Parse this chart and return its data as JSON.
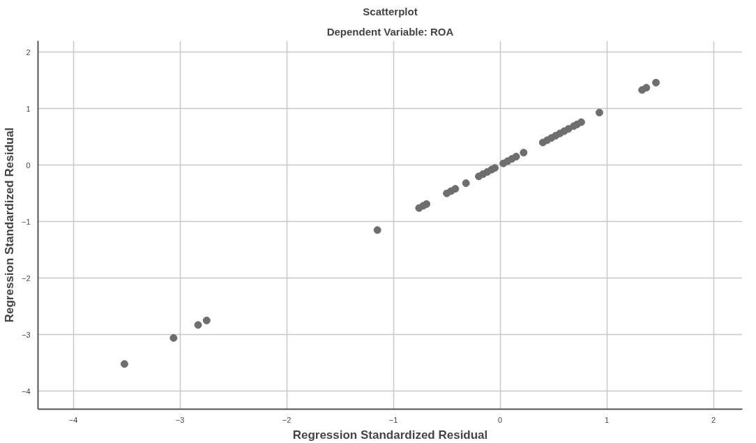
{
  "chart_data": {
    "type": "scatter",
    "title": "Scatterplot",
    "subtitle": "Dependent Variable: ROA",
    "xlabel": "Regression Standardized Residual",
    "ylabel": "Regression Standardized Residual",
    "x": [
      -3.52,
      -3.06,
      -2.83,
      -2.75,
      -1.15,
      -0.76,
      -0.72,
      -0.69,
      -0.5,
      -0.46,
      -0.42,
      -0.32,
      -0.2,
      -0.16,
      -0.12,
      -0.08,
      -0.05,
      0.03,
      0.07,
      0.11,
      0.15,
      0.22,
      0.4,
      0.44,
      0.48,
      0.52,
      0.56,
      0.6,
      0.64,
      0.69,
      0.72,
      0.76,
      0.93,
      1.33,
      1.37,
      1.46
    ],
    "series": [
      {
        "color": "#6e6e6e",
        "values": [
          -3.52,
          -3.06,
          -2.83,
          -2.75,
          -1.15,
          -0.76,
          -0.72,
          -0.69,
          -0.5,
          -0.46,
          -0.42,
          -0.32,
          -0.2,
          -0.16,
          -0.12,
          -0.08,
          -0.05,
          0.03,
          0.07,
          0.11,
          0.15,
          0.22,
          0.4,
          0.44,
          0.48,
          0.52,
          0.56,
          0.6,
          0.64,
          0.69,
          0.72,
          0.76,
          0.93,
          1.33,
          1.37,
          1.46
        ]
      }
    ],
    "xlim": [
      -4.33,
      2.27
    ],
    "ylim": [
      -4.32,
      2.2
    ],
    "xticks": [
      -4,
      -3,
      -2,
      -1,
      0,
      1,
      2
    ],
    "yticks": [
      -4,
      -3,
      -2,
      -1,
      0,
      1,
      2
    ],
    "grid": true,
    "marker": "circle"
  }
}
